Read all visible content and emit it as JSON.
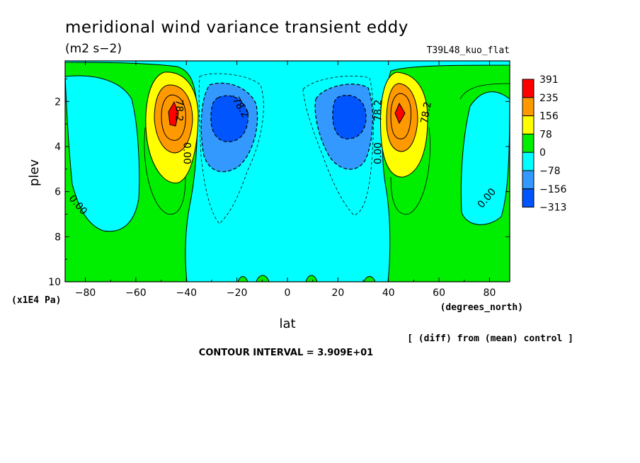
{
  "chart_data": {
    "type": "contour",
    "title": "meridional wind variance transient eddy",
    "units": "(m2 s−2)",
    "run_label": "T39L48_kuo_flat",
    "xlabel": "lat",
    "x_units": "(degrees_north)",
    "ylabel": "plev",
    "y_units": "(x1E4 Pa)",
    "xlim": [
      -88,
      88
    ],
    "ylim": [
      10,
      0.2
    ],
    "x_ticks": [
      -80,
      -60,
      -40,
      -20,
      0,
      20,
      40,
      60,
      80
    ],
    "y_ticks": [
      2,
      4,
      6,
      8,
      10
    ],
    "contour_interval": "CONTOUR INTERVAL = 3.909E+01",
    "comparison_note": "[ (diff) from (mean) control ]",
    "colorbar": {
      "labels": [
        "391",
        "235",
        "156",
        "78",
        "0",
        "−78",
        "−156",
        "−313"
      ],
      "colors": [
        "#ff0000",
        "#ff9900",
        "#ffff00",
        "#00ee00",
        "#00ffff",
        "#3399ff",
        "#0055ff"
      ]
    },
    "contour_labels": [
      {
        "text": "78.2",
        "lat": -43,
        "plev": 2.4,
        "angle": 90
      },
      {
        "text": "0.00",
        "lat": -40,
        "plev": 4.3,
        "angle": 90
      },
      {
        "text": "-78.2",
        "lat": -19,
        "plev": 2.2,
        "angle": 60
      },
      {
        "text": "78.2",
        "lat": 36,
        "plev": 2.4,
        "angle": -90
      },
      {
        "text": "0.00",
        "lat": 36,
        "plev": 4.3,
        "angle": -90
      },
      {
        "text": "78.2",
        "lat": 55,
        "plev": 2.5,
        "angle": -80
      },
      {
        "text": "0.00",
        "lat": -83,
        "plev": 6.6,
        "angle": 50
      },
      {
        "text": "0.00",
        "lat": 79,
        "plev": 6.3,
        "angle": -50
      }
    ],
    "features": [
      {
        "type": "max",
        "lat": -45,
        "plev": 2.5,
        "value_range": "235-391"
      },
      {
        "type": "max",
        "lat": 44,
        "plev": 2.5,
        "value_range": "235-391"
      },
      {
        "type": "min",
        "lat": -27,
        "plev": 2.5,
        "value_range": "-156 to -313"
      },
      {
        "type": "min",
        "lat": 27,
        "plev": 2.5,
        "value_range": "-156 to -313"
      }
    ]
  }
}
